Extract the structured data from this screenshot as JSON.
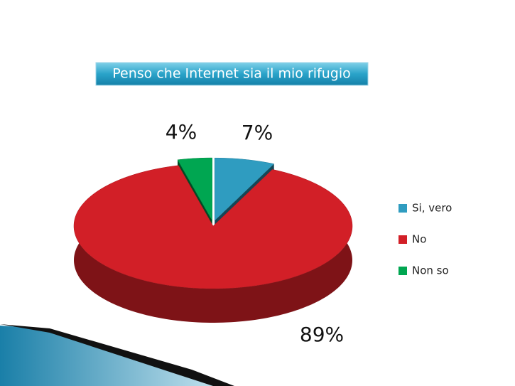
{
  "chart_data": {
    "type": "pie",
    "title": "Penso che Internet sia il mio rifugio",
    "categories": [
      "Si, vero",
      "No",
      "Non so"
    ],
    "values": [
      7,
      89,
      4
    ],
    "value_labels": [
      "7%",
      "89%",
      "4%"
    ],
    "colors": [
      "#2f9cc0",
      "#d21f27",
      "#00a651"
    ],
    "legend": "right"
  }
}
